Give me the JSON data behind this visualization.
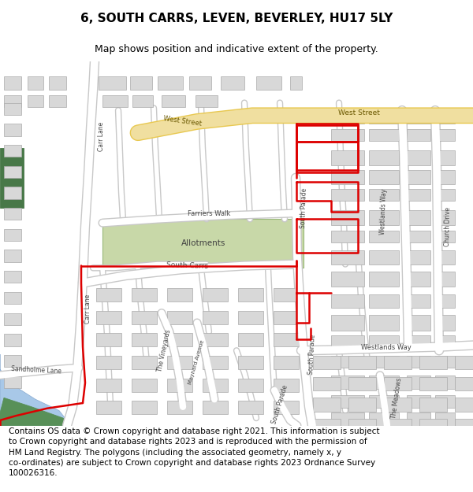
{
  "title": "6, SOUTH CARRS, LEVEN, BEVERLEY, HU17 5LY",
  "subtitle": "Map shows position and indicative extent of the property.",
  "footer": "Contains OS data © Crown copyright and database right 2021. This information is subject\nto Crown copyright and database rights 2023 and is reproduced with the permission of\nHM Land Registry. The polygons (including the associated geometry, namely x, y\nco-ordinates) are subject to Crown copyright and database rights 2023 Ordnance Survey\n100026316.",
  "title_fontsize": 11,
  "subtitle_fontsize": 9,
  "footer_fontsize": 7.5,
  "map_bg": "#f0f0f0",
  "road_color": "#ffffff",
  "road_outline": "#c8c8c8",
  "major_road_fill": "#f0dfa0",
  "major_road_outline": "#e8c850",
  "red_color": "#dd0000",
  "red_lw": 1.8,
  "allotment_fill": "#c8d8a8",
  "allotment_outline": "#98b878",
  "water_color": "#a8c8e8",
  "water_outline": "#88aad0",
  "green_fill": "#487848",
  "building_fill": "#d8d8d8",
  "building_outline": "#aaaaaa",
  "text_color": "#444444",
  "road_text": "#555555"
}
